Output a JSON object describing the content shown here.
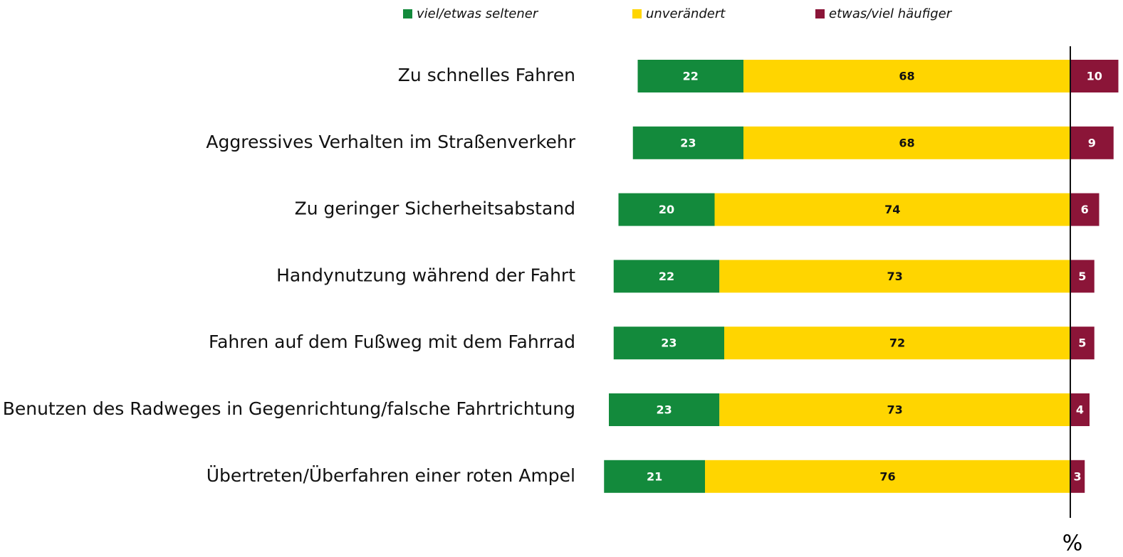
{
  "chart_data": {
    "type": "diverging_bar",
    "categories": [
      "Zu schnelles Fahren",
      "Aggressives Verhalten im Straßenverkehr",
      "Zu geringer Sicherheitsabstand",
      "Handynutzung während der Fahrt",
      "Fahren auf dem Fußweg mit dem Fahrrad",
      "Benutzen des Radweges in Gegenrichtung/falsche Fahrtrichtung",
      "Übertreten/Überfahren einer roten Ampel"
    ],
    "series": [
      {
        "name": "viel/etwas seltener",
        "color": "#138a3c",
        "values": [
          22,
          23,
          20,
          22,
          23,
          23,
          21
        ]
      },
      {
        "name": "unverändert",
        "color": "#ffd500",
        "values": [
          68,
          68,
          74,
          73,
          72,
          73,
          76
        ]
      },
      {
        "name": "etwas/viel häufiger",
        "color": "#8b1538",
        "values": [
          10,
          9,
          6,
          5,
          5,
          4,
          3
        ]
      }
    ],
    "xlabel": "%"
  }
}
